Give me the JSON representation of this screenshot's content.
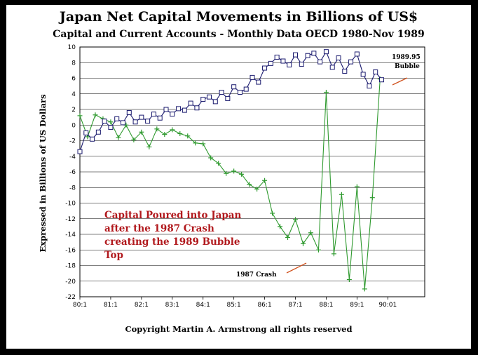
{
  "page": {
    "title": "Japan Net Capital Movements in Billions of US$",
    "subtitle": "Capital and Current Accounts - Monthly Data OECD 1980-Nov 1989",
    "copyright": "Copyright Martin A. Armstrong all rights reserved"
  },
  "chart_data": {
    "type": "line",
    "title": "Japan Net Capital Movements in Billions of US$",
    "subtitle": "Capital and Current Accounts - Monthly Data OECD 1980-Nov 1989",
    "xlabel": "",
    "ylabel": "Expressed in Billions of US Dollars",
    "x_ticks": [
      "80:1",
      "81:1",
      "82:1",
      "83:1",
      "84:1",
      "85:1",
      "86:1",
      "87:1",
      "88:1",
      "89:1",
      "90:01"
    ],
    "x_tick_years": [
      1980,
      1981,
      1982,
      1983,
      1984,
      1985,
      1986,
      1987,
      1988,
      1989,
      1990
    ],
    "y_ticks": [
      10,
      8,
      6,
      4,
      2,
      0,
      -2,
      -4,
      -6,
      -8,
      -10,
      -12,
      -14,
      -16,
      -18,
      -20,
      -22
    ],
    "xlim": [
      1980,
      1991.2
    ],
    "ylim": [
      -22,
      10
    ],
    "grid": "horizontal",
    "legend": "none",
    "colors": {
      "series_blue": "#1a1a6e",
      "series_green": "#2f9a2f",
      "annotation_red": "#b1191d",
      "arrow": "#d0521e"
    },
    "series": [
      {
        "marker": "square",
        "color": "#1a1a6e",
        "x": [
          1980.0,
          1980.2,
          1980.4,
          1980.6,
          1980.8,
          1981.0,
          1981.2,
          1981.4,
          1981.6,
          1981.8,
          1982.0,
          1982.2,
          1982.4,
          1982.6,
          1982.8,
          1983.0,
          1983.2,
          1983.4,
          1983.6,
          1983.8,
          1984.0,
          1984.2,
          1984.4,
          1984.6,
          1984.8,
          1985.0,
          1985.2,
          1985.4,
          1985.6,
          1985.8,
          1986.0,
          1986.2,
          1986.4,
          1986.6,
          1986.8,
          1987.0,
          1987.2,
          1987.4,
          1987.6,
          1987.8,
          1988.0,
          1988.2,
          1988.4,
          1988.6,
          1988.8,
          1989.0,
          1989.2,
          1989.4,
          1989.6,
          1989.8
        ],
        "values": [
          -3.4,
          -1.0,
          -1.8,
          -0.9,
          0.5,
          -0.3,
          0.8,
          0.3,
          1.6,
          0.4,
          1.0,
          0.5,
          1.4,
          0.9,
          2.0,
          1.4,
          2.1,
          1.9,
          2.8,
          2.2,
          3.3,
          3.6,
          3.0,
          4.2,
          3.4,
          4.9,
          4.2,
          4.6,
          6.1,
          5.5,
          7.3,
          7.9,
          8.7,
          8.2,
          7.7,
          9.0,
          7.8,
          8.9,
          9.2,
          8.1,
          9.4,
          7.4,
          8.6,
          6.9,
          8.1,
          9.1,
          6.5,
          5.0,
          6.8,
          5.8
        ]
      },
      {
        "marker": "plus",
        "color": "#2f9a2f",
        "x": [
          1980.0,
          1980.25,
          1980.5,
          1980.75,
          1981.0,
          1981.25,
          1981.5,
          1981.75,
          1982.0,
          1982.25,
          1982.5,
          1982.75,
          1983.0,
          1983.25,
          1983.5,
          1983.75,
          1984.0,
          1984.25,
          1984.5,
          1984.75,
          1985.0,
          1985.25,
          1985.5,
          1985.75,
          1986.0,
          1986.25,
          1986.5,
          1986.75,
          1987.0,
          1987.25,
          1987.5,
          1987.75,
          1988.0,
          1988.25,
          1988.5,
          1988.75,
          1989.0,
          1989.25,
          1989.5,
          1989.75
        ],
        "values": [
          1.2,
          -1.5,
          1.3,
          0.8,
          0.4,
          -1.6,
          0.0,
          -1.9,
          -0.9,
          -2.8,
          -0.5,
          -1.2,
          -0.6,
          -1.1,
          -1.4,
          -2.3,
          -2.4,
          -4.2,
          -4.9,
          -6.2,
          -5.9,
          -6.3,
          -7.6,
          -8.2,
          -7.1,
          -11.3,
          -13.0,
          -14.4,
          -12.1,
          -15.2,
          -13.8,
          -16.0,
          4.2,
          -16.5,
          -8.9,
          -19.8,
          -7.9,
          -21.0,
          -9.3,
          5.9
        ]
      }
    ],
    "annotations": [
      {
        "text": "Capital Poured into Japan",
        "color": "#b1191d"
      },
      {
        "text": "after the 1987 Crash",
        "color": "#b1191d"
      },
      {
        "text": "creating the 1989 Bubble",
        "color": "#b1191d"
      },
      {
        "text": "Top",
        "color": "#b1191d"
      },
      {
        "text": "1987 Crash"
      },
      {
        "text": "1989.95"
      },
      {
        "text": "Bubble"
      }
    ]
  }
}
